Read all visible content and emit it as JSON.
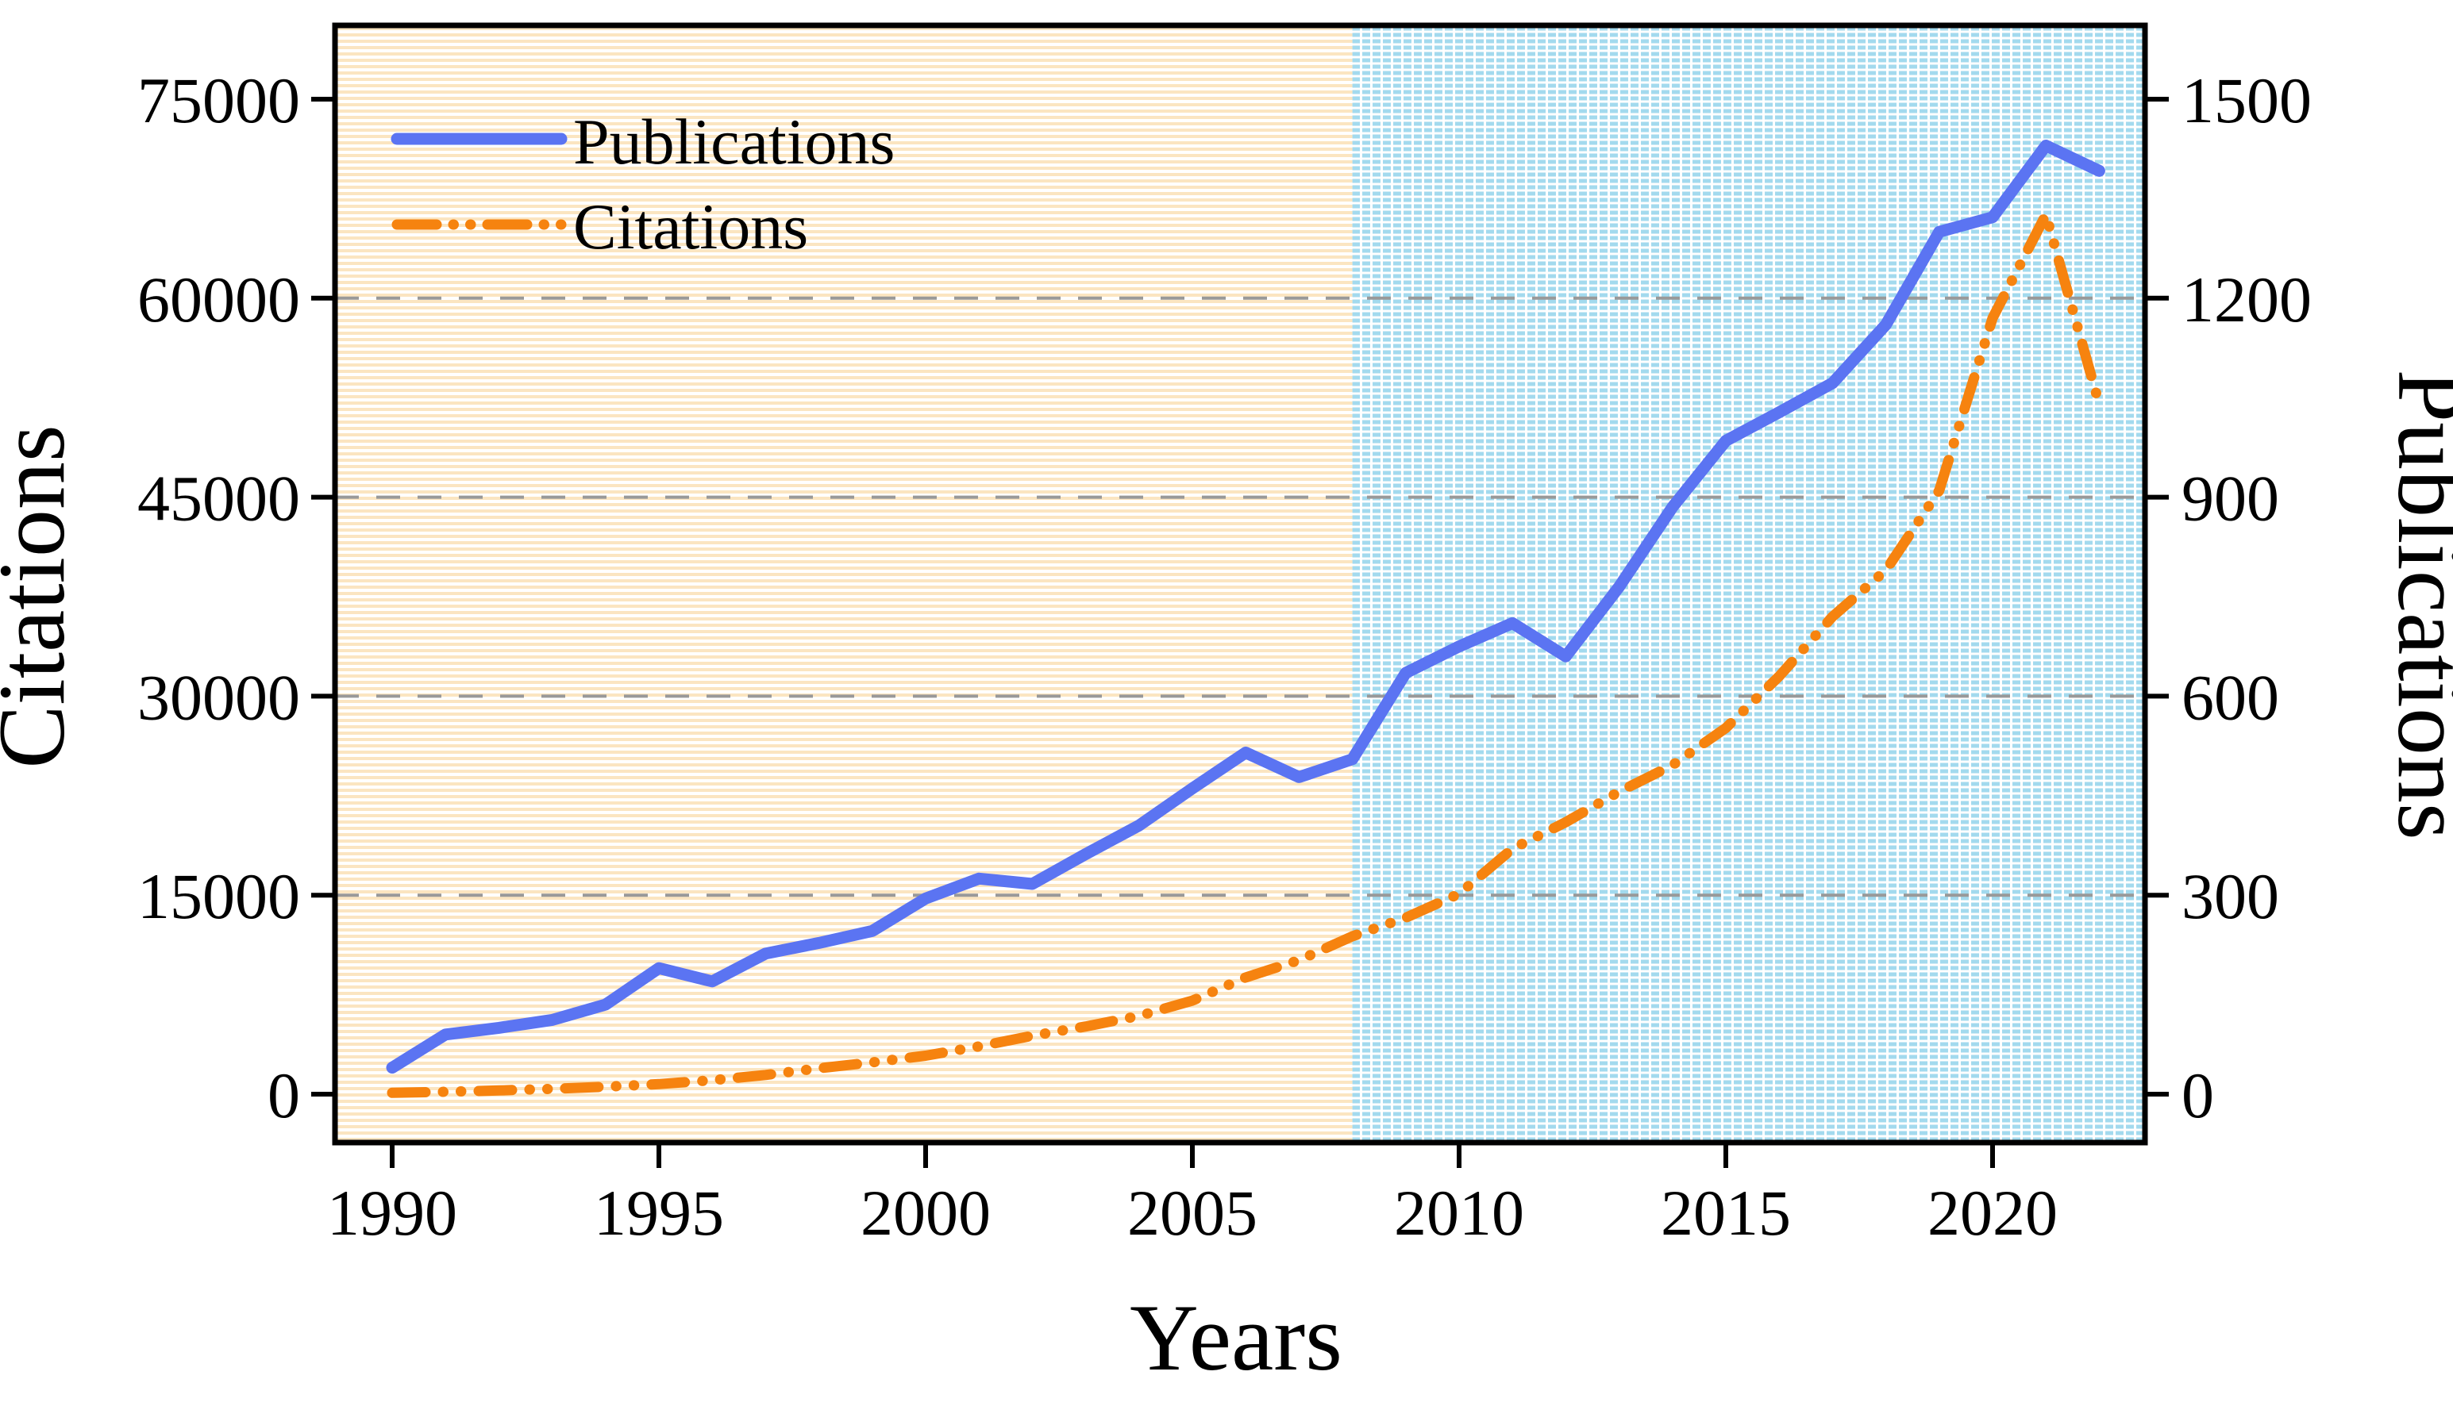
{
  "chart_data": {
    "type": "line",
    "title": "",
    "xlabel": "Years",
    "ylabel_left": "Citations",
    "ylabel_right": "Publications",
    "x": [
      1990,
      1991,
      1992,
      1993,
      1994,
      1995,
      1996,
      1997,
      1998,
      1999,
      2000,
      2001,
      2002,
      2003,
      2004,
      2005,
      2006,
      2007,
      2008,
      2009,
      2010,
      2011,
      2012,
      2013,
      2014,
      2015,
      2016,
      2017,
      2018,
      2019,
      2020,
      2021,
      2022
    ],
    "series": [
      {
        "name": "Publications",
        "axis": "right",
        "style": "solid",
        "color": "#5b74f2",
        "values": [
          40,
          90,
          100,
          112,
          135,
          190,
          170,
          212,
          228,
          246,
          295,
          325,
          317,
          362,
          405,
          461,
          515,
          478,
          505,
          635,
          675,
          710,
          660,
          765,
          885,
          985,
          1028,
          1072,
          1160,
          1300,
          1322,
          1430,
          1392
        ]
      },
      {
        "name": "Citations",
        "axis": "left",
        "style": "dash-dot-dot",
        "color": "#f6830f",
        "values": [
          100,
          180,
          280,
          400,
          560,
          760,
          1050,
          1450,
          1950,
          2400,
          2900,
          3600,
          4400,
          5100,
          5900,
          7050,
          8800,
          10100,
          11900,
          13300,
          15100,
          18500,
          20500,
          22800,
          24800,
          27600,
          31500,
          36000,
          39500,
          45500,
          58500,
          66300,
          52000
        ]
      }
    ],
    "axes": {
      "x_ticks": [
        "1990",
        "1995",
        "2000",
        "2005",
        "2010",
        "2015",
        "2020"
      ],
      "x_tick_years": [
        1990,
        1995,
        2000,
        2005,
        2010,
        2015,
        2020
      ],
      "left_ticks": [
        "0",
        "15000",
        "30000",
        "45000",
        "60000",
        "75000"
      ],
      "left_tick_values": [
        0,
        15000,
        30000,
        45000,
        60000,
        75000
      ],
      "left_range": [
        0,
        75000
      ],
      "right_ticks": [
        "0",
        "300",
        "600",
        "900",
        "1200",
        "1500"
      ],
      "right_tick_values": [
        0,
        300,
        600,
        900,
        1200,
        1500
      ],
      "right_range": [
        0,
        1500
      ]
    },
    "gridlines": {
      "left_values": [
        15000,
        30000,
        45000,
        60000
      ],
      "color": "#999999",
      "style": "dashed"
    },
    "background_regions": [
      {
        "from_year": "plot-start",
        "to_year": 2008,
        "pattern": "orange-stripes",
        "color": "#fbe5c1"
      },
      {
        "from_year": 2008,
        "to_year": "plot-end",
        "pattern": "blue-dashes",
        "color": "#a3daee"
      }
    ],
    "legend_position": "upper-left"
  },
  "legend": {
    "items": [
      {
        "label": "Publications",
        "color": "#5b74f2",
        "style": "solid"
      },
      {
        "label": "Citations",
        "color": "#f6830f",
        "style": "dash-dot-dot"
      }
    ]
  },
  "titles": {
    "x_axis": "Years",
    "y_axis_left": "Citations",
    "y_axis_right": "Publications"
  },
  "colors": {
    "publications_line": "#5b74f2",
    "citations_line": "#f6830f",
    "stripe_background": "#fbe5c1",
    "dash_background": "#a3daee",
    "gridline": "#999999",
    "frame": "#000000"
  }
}
